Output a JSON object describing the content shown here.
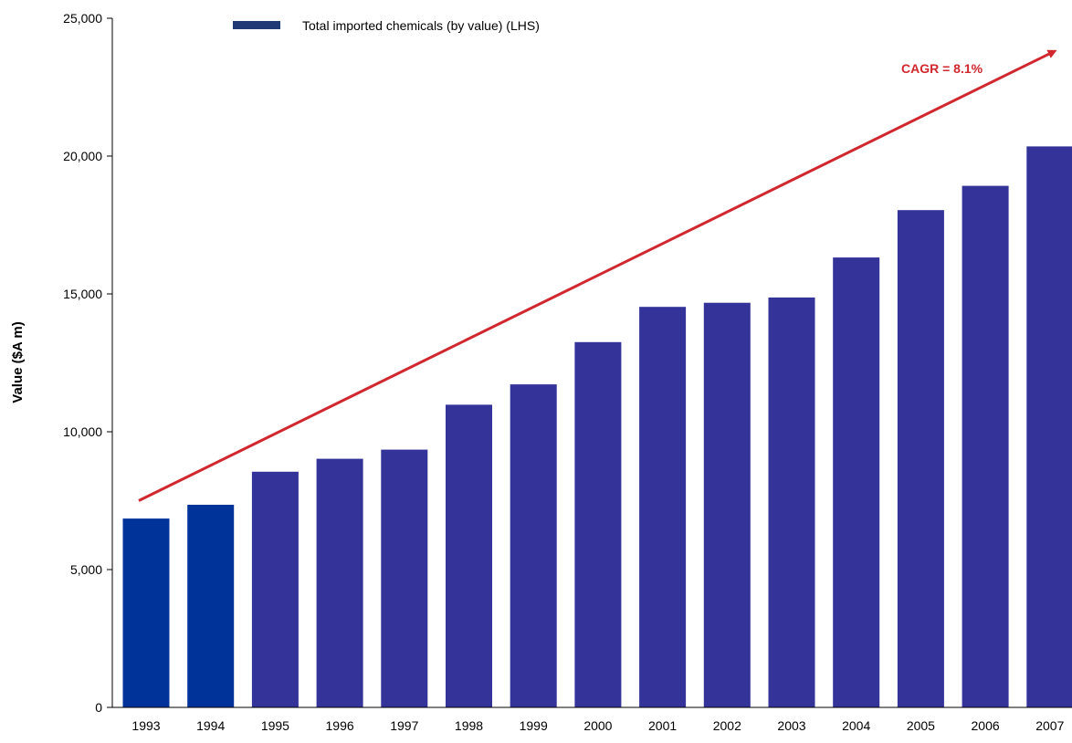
{
  "chart_data": {
    "type": "bar",
    "categories": [
      "1993",
      "1994",
      "1995",
      "1996",
      "1997",
      "1998",
      "1999",
      "2000",
      "2001",
      "2002",
      "2003",
      "2004",
      "2005",
      "2006",
      "2007"
    ],
    "values": [
      6850,
      7350,
      8550,
      9020,
      9350,
      10980,
      11720,
      13250,
      14530,
      14680,
      14870,
      16320,
      18040,
      18920,
      20350
    ],
    "bar_colors": [
      "#003399",
      "#003399",
      "#333399",
      "#333399",
      "#333399",
      "#333399",
      "#333399",
      "#333399",
      "#333399",
      "#333399",
      "#333399",
      "#333399",
      "#333399",
      "#333399",
      "#333399"
    ],
    "ylabel": "Value ($A m)",
    "ylim": [
      0,
      25000
    ],
    "yticks": [
      0,
      5000,
      10000,
      15000,
      20000,
      25000
    ],
    "ytick_labels": [
      "0",
      "5,000",
      "10,000",
      "15,000",
      "20,000",
      "25,000"
    ],
    "legend": {
      "label": "Total imported chemicals (by value) (LHS)",
      "color": "#1f3a75",
      "position": "top"
    },
    "annotation": {
      "text": "CAGR = 8.1%",
      "color": "#d0282e",
      "trend_start": {
        "x": "1993",
        "y": 7500
      },
      "trend_end": {
        "x": "2007",
        "y": 23800
      }
    },
    "grid": false
  }
}
